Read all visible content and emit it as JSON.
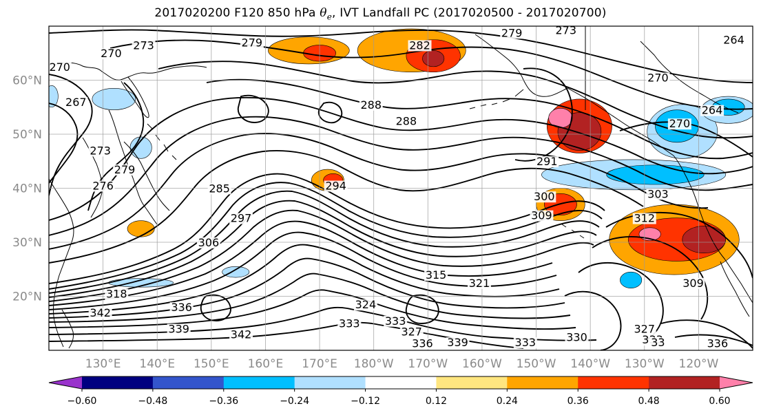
{
  "title": {
    "prefix": "2017020200 F120 850 hPa ",
    "theta": "θ",
    "subscript": "e",
    "suffix": ", IVT Landfall PC (2017020500 - 2017020700)"
  },
  "map": {
    "projection": "cylindrical",
    "extent": {
      "lon_min": 120,
      "lon_max": 250,
      "lat_min": 10,
      "lat_max": 70
    },
    "lat_ticks": [
      {
        "value": 20,
        "label": "20°N"
      },
      {
        "value": 30,
        "label": "30°N"
      },
      {
        "value": 40,
        "label": "40°N"
      },
      {
        "value": 50,
        "label": "50°N"
      },
      {
        "value": 60,
        "label": "60°N"
      }
    ],
    "lon_ticks": [
      {
        "value": 130,
        "label": "130°E"
      },
      {
        "value": 140,
        "label": "140°E"
      },
      {
        "value": 150,
        "label": "150°E"
      },
      {
        "value": 160,
        "label": "160°E"
      },
      {
        "value": 170,
        "label": "170°E"
      },
      {
        "value": 180,
        "label": "180°W"
      },
      {
        "value": 190,
        "label": "170°W"
      },
      {
        "value": 200,
        "label": "160°W"
      },
      {
        "value": 210,
        "label": "150°W"
      },
      {
        "value": 220,
        "label": "140°W"
      },
      {
        "value": 230,
        "label": "130°W"
      },
      {
        "value": 240,
        "label": "120°W"
      }
    ],
    "gridlines": true,
    "contour_variable": "850 hPa theta-e (K)",
    "contour_labels": [
      {
        "text": "270",
        "lon": 122.0,
        "lat": 62.0
      },
      {
        "text": "270",
        "lon": 131.5,
        "lat": 64.5
      },
      {
        "text": "273",
        "lon": 137.5,
        "lat": 66.0
      },
      {
        "text": "279",
        "lon": 157.5,
        "lat": 66.5
      },
      {
        "text": "279",
        "lon": 205.5,
        "lat": 68.3
      },
      {
        "text": "273",
        "lon": 215.5,
        "lat": 68.8
      },
      {
        "text": "282",
        "lon": 188.5,
        "lat": 66.0
      },
      {
        "text": "264",
        "lon": 246.5,
        "lat": 67.0
      },
      {
        "text": "267",
        "lon": 125.0,
        "lat": 55.5
      },
      {
        "text": "288",
        "lon": 179.5,
        "lat": 55.0
      },
      {
        "text": "288",
        "lon": 186.0,
        "lat": 52.0
      },
      {
        "text": "270",
        "lon": 232.5,
        "lat": 60.0
      },
      {
        "text": "264",
        "lon": 242.5,
        "lat": 54.0
      },
      {
        "text": "270",
        "lon": 236.5,
        "lat": 51.5
      },
      {
        "text": "273",
        "lon": 129.5,
        "lat": 46.5
      },
      {
        "text": "279",
        "lon": 134.0,
        "lat": 43.0
      },
      {
        "text": "276",
        "lon": 130.0,
        "lat": 40.0
      },
      {
        "text": "285",
        "lon": 151.5,
        "lat": 39.5
      },
      {
        "text": "291",
        "lon": 212.0,
        "lat": 44.5
      },
      {
        "text": "297",
        "lon": 155.5,
        "lat": 34.0
      },
      {
        "text": "294",
        "lon": 173.0,
        "lat": 40.0
      },
      {
        "text": "300",
        "lon": 211.5,
        "lat": 38.0
      },
      {
        "text": "303",
        "lon": 232.5,
        "lat": 38.5
      },
      {
        "text": "306",
        "lon": 149.5,
        "lat": 29.5
      },
      {
        "text": "309",
        "lon": 211.0,
        "lat": 34.5
      },
      {
        "text": "312",
        "lon": 230.0,
        "lat": 34.0
      },
      {
        "text": "315",
        "lon": 191.5,
        "lat": 23.5
      },
      {
        "text": "321",
        "lon": 199.5,
        "lat": 22.0
      },
      {
        "text": "318",
        "lon": 132.5,
        "lat": 20.0
      },
      {
        "text": "324",
        "lon": 178.5,
        "lat": 18.0
      },
      {
        "text": "309",
        "lon": 239.0,
        "lat": 22.0
      },
      {
        "text": "342",
        "lon": 129.5,
        "lat": 16.5
      },
      {
        "text": "336",
        "lon": 144.5,
        "lat": 17.5
      },
      {
        "text": "333",
        "lon": 175.5,
        "lat": 14.5
      },
      {
        "text": "333",
        "lon": 184.0,
        "lat": 15.0
      },
      {
        "text": "327",
        "lon": 187.0,
        "lat": 13.0
      },
      {
        "text": "339",
        "lon": 144.0,
        "lat": 13.5
      },
      {
        "text": "342",
        "lon": 155.5,
        "lat": 12.5
      },
      {
        "text": "336",
        "lon": 189.0,
        "lat": 10.8
      },
      {
        "text": "339",
        "lon": 195.5,
        "lat": 11.0
      },
      {
        "text": "333",
        "lon": 208.0,
        "lat": 11.0
      },
      {
        "text": "330",
        "lon": 217.5,
        "lat": 12.0
      },
      {
        "text": "327",
        "lon": 230.0,
        "lat": 13.5
      },
      {
        "text": "333",
        "lon": 231.5,
        "lat": 11.5
      },
      {
        "text": "336",
        "lon": 243.5,
        "lat": 10.8
      },
      {
        "text": "33",
        "lon": 232.5,
        "lat": 11.0
      }
    ],
    "shaded_variable": "IVT landfall PC correlation",
    "shaded_regions": [
      {
        "name": "aleutian-warm",
        "level": 0.36,
        "lon": 218,
        "lat": 51.5,
        "rx": 6.0,
        "ry": 5.0
      },
      {
        "name": "aleutian-warm",
        "level": 0.48,
        "lon": 218,
        "lat": 50.5,
        "rx": 4.0,
        "ry": 3.5
      },
      {
        "name": "aleutian-warm",
        "level": 0.6,
        "lon": 214.5,
        "lat": 53.0,
        "rx": 2.2,
        "ry": 1.8
      },
      {
        "name": "arctic-warm",
        "level": 0.24,
        "lon": 168,
        "lat": 65.5,
        "rx": 7.5,
        "ry": 2.5
      },
      {
        "name": "arctic-warm",
        "level": 0.36,
        "lon": 170,
        "lat": 65.0,
        "rx": 3.0,
        "ry": 1.5
      },
      {
        "name": "arctic-warm",
        "level": 0.24,
        "lon": 187,
        "lat": 65.5,
        "rx": 10.0,
        "ry": 4.0
      },
      {
        "name": "arctic-warm",
        "level": 0.36,
        "lon": 191,
        "lat": 64.5,
        "rx": 5.0,
        "ry": 3.0
      },
      {
        "name": "arctic-warm",
        "level": 0.48,
        "lon": 191,
        "lat": 64.0,
        "rx": 2.0,
        "ry": 1.5
      },
      {
        "name": "california-warm",
        "level": 0.24,
        "lon": 235.5,
        "lat": 30.5,
        "rx": 12.0,
        "ry": 6.5
      },
      {
        "name": "california-warm",
        "level": 0.36,
        "lon": 236,
        "lat": 30.5,
        "rx": 9.0,
        "ry": 4.0
      },
      {
        "name": "california-warm",
        "level": 0.48,
        "lon": 241,
        "lat": 30.5,
        "rx": 4.0,
        "ry": 2.5
      },
      {
        "name": "california-warm",
        "level": 0.6,
        "lon": 231,
        "lat": 31.5,
        "rx": 2.0,
        "ry": 1.2
      },
      {
        "name": "jet-warm",
        "level": 0.24,
        "lon": 214.5,
        "lat": 37.0,
        "rx": 4.5,
        "ry": 3.0
      },
      {
        "name": "jet-warm",
        "level": 0.36,
        "lon": 214.5,
        "lat": 37.0,
        "rx": 3.0,
        "ry": 2.0
      },
      {
        "name": "dateline-warm",
        "level": 0.24,
        "lon": 171.5,
        "lat": 41.5,
        "rx": 3.0,
        "ry": 2.0
      },
      {
        "name": "dateline-warm",
        "level": 0.36,
        "lon": 172.5,
        "lat": 41.5,
        "rx": 1.8,
        "ry": 1.2
      },
      {
        "name": "japan-warm",
        "level": 0.24,
        "lon": 137,
        "lat": 32.5,
        "rx": 2.5,
        "ry": 1.5
      },
      {
        "name": "gulf-cold",
        "level": -0.24,
        "lon": 228,
        "lat": 42.5,
        "rx": 17.0,
        "ry": 2.8
      },
      {
        "name": "gulf-cold",
        "level": -0.36,
        "lon": 232,
        "lat": 42.5,
        "rx": 9.0,
        "ry": 1.8
      },
      {
        "name": "gulf-cold",
        "level": -0.24,
        "lon": 237,
        "lat": 50.5,
        "rx": 6.5,
        "ry": 5.0
      },
      {
        "name": "gulf-cold",
        "level": -0.36,
        "lon": 236,
        "lat": 51.5,
        "rx": 4.0,
        "ry": 3.0
      },
      {
        "name": "alaska-cold",
        "level": -0.24,
        "lon": 245.5,
        "lat": 54.5,
        "rx": 5.0,
        "ry": 2.5
      },
      {
        "name": "alaska-cold",
        "level": -0.36,
        "lon": 245.5,
        "lat": 55.0,
        "rx": 3.0,
        "ry": 1.5
      },
      {
        "name": "pacific-cold",
        "level": -0.24,
        "lon": 137,
        "lat": 22.5,
        "rx": 6.0,
        "ry": 0.8
      },
      {
        "name": "pacific-cold",
        "level": -0.24,
        "lon": 154.5,
        "lat": 24.5,
        "rx": 2.5,
        "ry": 1.0
      },
      {
        "name": "pacific-cold",
        "level": -0.36,
        "lon": 227.5,
        "lat": 23.0,
        "rx": 2.0,
        "ry": 1.5
      },
      {
        "name": "kamchatka-cold",
        "level": -0.24,
        "lon": 132,
        "lat": 56.5,
        "rx": 4.0,
        "ry": 2.0
      },
      {
        "name": "kamchatka-cold",
        "level": -0.24,
        "lon": 137,
        "lat": 47.5,
        "rx": 2.0,
        "ry": 2.0
      },
      {
        "name": "kamchatka-cold",
        "level": -0.24,
        "lon": 120.5,
        "lat": 57.0,
        "rx": 1.2,
        "ry": 2.0
      }
    ]
  },
  "colorbar": {
    "levels": [
      -0.6,
      -0.48,
      -0.36,
      -0.24,
      -0.12,
      0.12,
      0.24,
      0.36,
      0.48,
      0.6
    ],
    "tick_labels": [
      "−0.60",
      "−0.48",
      "−0.36",
      "−0.24",
      "−0.12",
      "0.12",
      "0.24",
      "0.36",
      "0.48",
      "0.60"
    ],
    "colors": [
      "#9933cc",
      "#000080",
      "#3355cc",
      "#00bfff",
      "#b0e0ff",
      "#ffffff",
      "#ffe680",
      "#ffa500",
      "#ff3300",
      "#b22222",
      "#ff80aa"
    ],
    "extend": "both"
  }
}
